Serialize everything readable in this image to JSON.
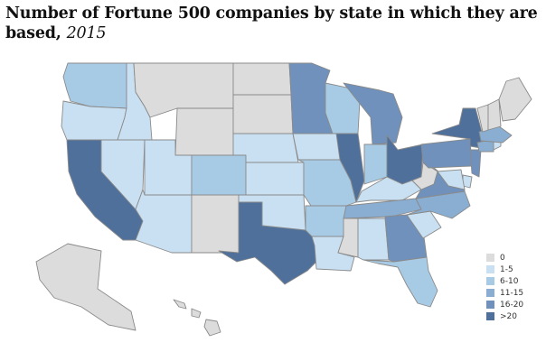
{
  "title": {
    "main": "Number of Fortune 500 companies by state in which they are based, ",
    "year": "2015"
  },
  "bins": [
    {
      "label": "0",
      "color": "#dcdcdc"
    },
    {
      "label": "1-5",
      "color": "#c8e0f1"
    },
    {
      "label": "6-10",
      "color": "#a8cbe5"
    },
    {
      "label": "11-15",
      "color": "#8aaed2"
    },
    {
      "label": "16-20",
      "color": "#6f91bc"
    },
    {
      "label": ">20",
      "color": "#4f709b"
    }
  ],
  "states": {
    "WA": 2,
    "OR": 1,
    "CA": 5,
    "NV": 1,
    "ID": 1,
    "MT": 0,
    "WY": 0,
    "UT": 1,
    "AZ": 1,
    "CO": 2,
    "NM": 0,
    "ND": 0,
    "SD": 0,
    "NE": 1,
    "KS": 1,
    "OK": 1,
    "TX": 5,
    "MN": 4,
    "IA": 1,
    "MO": 2,
    "AR": 2,
    "LA": 1,
    "WI": 2,
    "IL": 5,
    "MI": 4,
    "IN": 2,
    "OH": 5,
    "KY": 1,
    "TN": 3,
    "MS": 0,
    "AL": 1,
    "GA": 4,
    "FL": 2,
    "SC": 1,
    "NC": 3,
    "VA": 4,
    "WV": 0,
    "PA": 4,
    "NY": 5,
    "NJ": 4,
    "DE": 1,
    "MD": 1,
    "CT": 3,
    "RI": 1,
    "MA": 3,
    "VT": 0,
    "NH": 0,
    "ME": 0,
    "AK": 0,
    "HI": 0
  }
}
